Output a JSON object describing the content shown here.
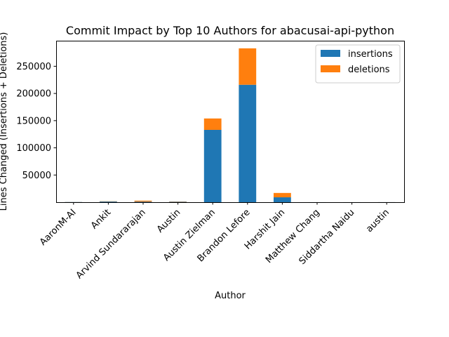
{
  "chart_data": {
    "type": "bar",
    "stacked": true,
    "title": "Commit Impact by Top 10 Authors for abacusai-api-python",
    "xlabel": "Author",
    "ylabel": "Lines Changed (Insertions + Deletions)",
    "categories": [
      "AaronM-AI",
      "Ankit",
      "Arvind Sundararajan",
      "Austin",
      "Austin Zielman",
      "Brandon Lefore",
      "Harshit Jain",
      "Matthew Chang",
      "Siddartha Naidu",
      "austin"
    ],
    "series": [
      {
        "name": "insertions",
        "color": "#1f77b4",
        "values": [
          300,
          1200,
          1000,
          800,
          133000,
          216000,
          9000,
          50,
          50,
          100
        ]
      },
      {
        "name": "deletions",
        "color": "#ff7f0e",
        "values": [
          100,
          500,
          1800,
          500,
          21000,
          67000,
          8000,
          30,
          30,
          50
        ]
      }
    ],
    "ylim": [
      0,
      297000
    ],
    "yticks": [
      50000,
      100000,
      150000,
      200000,
      250000
    ],
    "legend_position": "top-right",
    "grid": false
  }
}
